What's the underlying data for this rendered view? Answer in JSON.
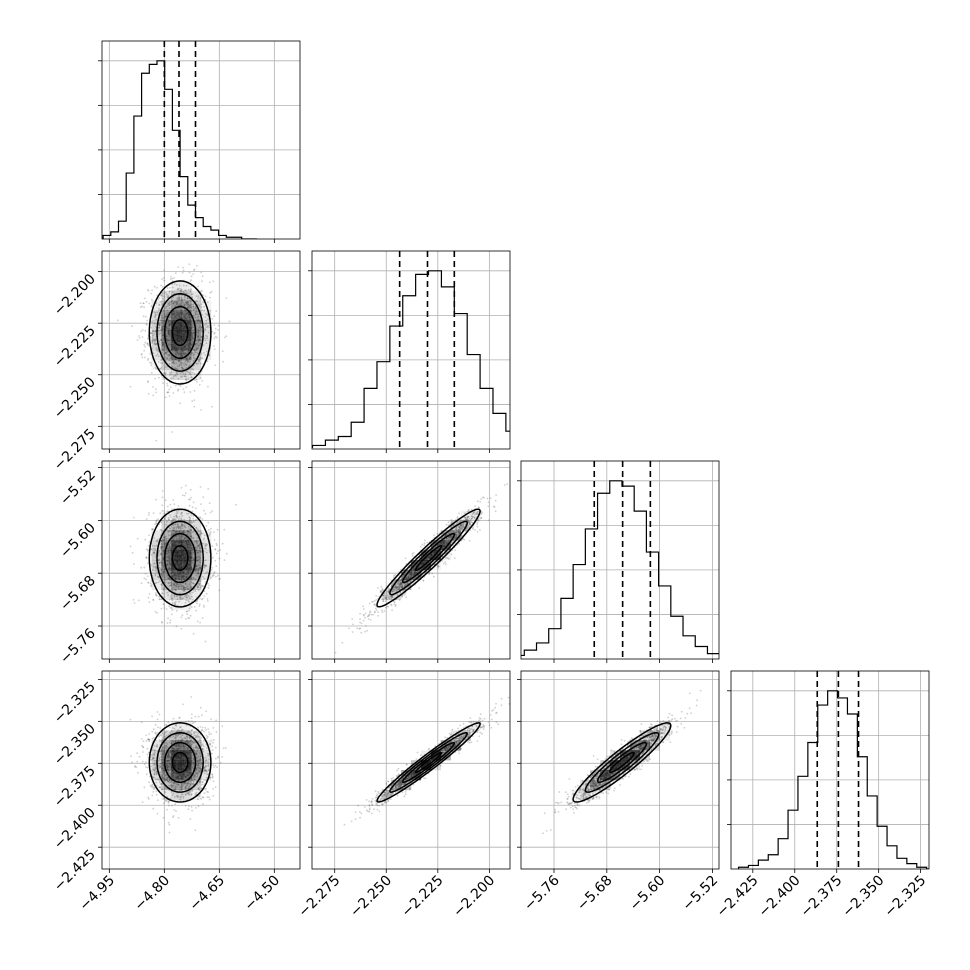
{
  "chart_data": {
    "type": "corner",
    "parameters": [
      "p0",
      "p1",
      "p2",
      "p3"
    ],
    "display_names": [
      "",
      "",
      "",
      ""
    ],
    "ranges": [
      [
        -4.97,
        -4.43
      ],
      [
        -2.286,
        -2.19
      ],
      [
        -5.81,
        -5.51
      ],
      [
        -2.438,
        -2.32
      ]
    ],
    "ticks": [
      {
        "values": [
          -4.95,
          -4.8,
          -4.65,
          -4.5
        ],
        "labels": [
          "−4.95",
          "−4.80",
          "−4.65",
          "−4.50"
        ]
      },
      {
        "values": [
          -2.275,
          -2.25,
          -2.225,
          -2.2
        ],
        "labels": [
          "−2.275",
          "−2.250",
          "−2.225",
          "−2.200"
        ]
      },
      {
        "values": [
          -5.76,
          -5.68,
          -5.6,
          -5.52
        ],
        "labels": [
          "−5.76",
          "−5.68",
          "−5.60",
          "−5.52"
        ]
      },
      {
        "values": [
          -2.425,
          -2.4,
          -2.375,
          -2.35,
          -2.325
        ],
        "labels": [
          "−2.425",
          "−2.400",
          "−2.375",
          "−2.350",
          "−2.325"
        ]
      }
    ],
    "quantiles": [
      [
        -4.8,
        -4.76,
        -4.715
      ],
      [
        -2.2435,
        -2.23,
        -2.217
      ],
      [
        -5.699,
        -5.656,
        -5.614
      ],
      [
        -2.3866,
        -2.374,
        -2.362
      ]
    ],
    "histograms": [
      {
        "counts": [
          0.02,
          0.04,
          0.1,
          0.37,
          0.69,
          0.93,
          0.98,
          1.0,
          0.84,
          0.61,
          0.35,
          0.19,
          0.12,
          0.07,
          0.05,
          0.02,
          0.01,
          0.01,
          0.0,
          0.0
        ]
      },
      {
        "counts": [
          0.01,
          0.02,
          0.05,
          0.07,
          0.15,
          0.34,
          0.49,
          0.69,
          0.86,
          0.98,
          1.0,
          0.91,
          0.76,
          0.53,
          0.34,
          0.2,
          0.1,
          0.05,
          0.02,
          0.01
        ]
      },
      {
        "counts": [
          0.01,
          0.02,
          0.05,
          0.09,
          0.17,
          0.34,
          0.53,
          0.73,
          0.93,
          1.0,
          0.97,
          0.83,
          0.6,
          0.41,
          0.24,
          0.13,
          0.07,
          0.03,
          0.01,
          0.0
        ]
      },
      {
        "counts": [
          0.01,
          0.02,
          0.05,
          0.08,
          0.17,
          0.33,
          0.52,
          0.71,
          0.92,
          1.0,
          0.96,
          0.87,
          0.63,
          0.41,
          0.24,
          0.13,
          0.06,
          0.03,
          0.01,
          0.0
        ]
      }
    ],
    "means": [
      -4.757,
      -2.2295,
      -5.657,
      -2.3745
    ],
    "stds": [
      0.042,
      0.0125,
      0.037,
      0.0118
    ],
    "correlations": [
      [
        1.0,
        0.0,
        0.0,
        0.0
      ],
      [
        0.0,
        1.0,
        0.96,
        0.97
      ],
      [
        0.0,
        0.96,
        1.0,
        0.93
      ],
      [
        0.0,
        0.97,
        0.93,
        1.0
      ]
    ],
    "contour_levels_sigma": [
      0.5,
      1.0,
      1.5,
      2.0
    ],
    "grid": true,
    "colors": {
      "line": "#000000",
      "grid": "#b0b0b0",
      "density": "#000000"
    }
  }
}
